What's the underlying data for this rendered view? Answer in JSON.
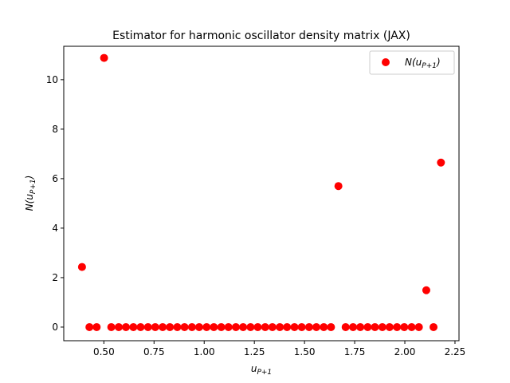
{
  "chart_data": {
    "type": "scatter",
    "title": "Estimator for harmonic oscillator density matrix (JAX)",
    "xlabel": "u",
    "xlabel_sub": "P+1",
    "ylabel_prefix": "N(u",
    "ylabel_sub": "P+1",
    "ylabel_suffix": ")",
    "xlim": [
      0.3,
      2.27
    ],
    "ylim": [
      -0.55,
      11.35
    ],
    "xticks": [
      0.5,
      0.75,
      1.0,
      1.25,
      1.5,
      1.75,
      2.0,
      2.25
    ],
    "xtick_labels": [
      "0.50",
      "0.75",
      "1.00",
      "1.25",
      "1.50",
      "1.75",
      "2.00",
      "2.25"
    ],
    "yticks": [
      0,
      2,
      4,
      6,
      8,
      10
    ],
    "ytick_labels": [
      "0",
      "2",
      "4",
      "6",
      "8",
      "10"
    ],
    "grid": false,
    "legend_position": "top-right",
    "series": [
      {
        "name": "N(u_{P+1})",
        "name_prefix": "N(u",
        "name_sub": "P+1",
        "name_suffix": ")",
        "color": "#ff0000",
        "x": [
          0.391,
          0.428,
          0.464,
          0.501,
          0.537,
          0.574,
          0.61,
          0.647,
          0.683,
          0.72,
          0.756,
          0.793,
          0.829,
          0.866,
          0.902,
          0.939,
          0.975,
          1.012,
          1.048,
          1.085,
          1.121,
          1.158,
          1.194,
          1.231,
          1.267,
          1.304,
          1.34,
          1.377,
          1.413,
          1.45,
          1.486,
          1.523,
          1.559,
          1.596,
          1.632,
          1.669,
          1.705,
          1.742,
          1.778,
          1.815,
          1.851,
          1.888,
          1.924,
          1.961,
          1.997,
          2.034,
          2.07,
          2.107,
          2.143,
          2.18
        ],
        "y": [
          2.43,
          0.0,
          0.0,
          10.88,
          0.0,
          0.0,
          0.0,
          0.0,
          0.0,
          0.0,
          0.0,
          0.0,
          0.0,
          0.0,
          0.0,
          0.0,
          0.0,
          0.0,
          0.0,
          0.0,
          0.0,
          0.0,
          0.0,
          0.0,
          0.0,
          0.0,
          0.0,
          0.0,
          0.0,
          0.0,
          0.0,
          0.0,
          0.0,
          0.0,
          0.0,
          5.7,
          0.0,
          0.0,
          0.0,
          0.0,
          0.0,
          0.0,
          0.0,
          0.0,
          0.0,
          0.0,
          0.0,
          1.49,
          0.0,
          6.65
        ]
      }
    ]
  }
}
